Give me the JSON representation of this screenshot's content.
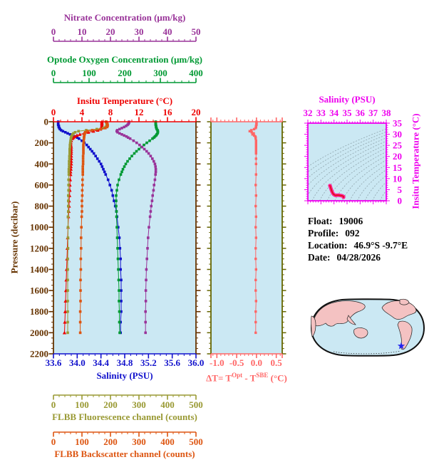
{
  "figure": {
    "description": "Profiling float data plot",
    "info_panel": {
      "float_label": "Float:",
      "float_value": "19006",
      "profile_label": "Profile:",
      "profile_value": "092",
      "location_label": "Location:",
      "location_value": "46.9°S -9.7°E",
      "date_label": "Date:",
      "date_value": "04/28/2026"
    }
  },
  "colors": {
    "plot_bg": "#cbe8f3",
    "ts_outer": "#ff2299",
    "ts_inner": "#dd1111",
    "map_ocean": "#cbe8f3",
    "map_land": "#f4c2c2",
    "map_outline": "#111111",
    "marker_blue": "#2222ee",
    "text": "#000000"
  },
  "axes": {
    "nitrate": {
      "title": "Nitrate Concentration (μm/kg)",
      "color": "#993399",
      "min": 0,
      "max": 50,
      "tick_values": [
        0,
        10,
        20,
        30,
        40,
        50
      ],
      "tick_labels": [
        "0",
        "10",
        "20",
        "30",
        "40",
        "50"
      ],
      "minor_step": 2
    },
    "oxygen": {
      "title": "Optode Oxygen Concentration (μm/kg)",
      "color": "#009933",
      "min": 0,
      "max": 400,
      "tick_values": [
        0,
        100,
        200,
        300,
        400
      ],
      "tick_labels": [
        "0",
        "100",
        "200",
        "300",
        "400"
      ],
      "minor_step": 20
    },
    "temperature": {
      "title": "Insitu Temperature (°C)",
      "color": "#ee0000",
      "min": 0,
      "max": 20,
      "tick_values": [
        0,
        4,
        8,
        12,
        16,
        20
      ],
      "tick_labels": [
        "0",
        "4",
        "8",
        "12",
        "16",
        "20"
      ],
      "minor_step": 1
    },
    "salinity": {
      "title": "Salinity (PSU)",
      "color": "#1111cc",
      "min": 33.6,
      "max": 36.0,
      "tick_values": [
        33.6,
        34.0,
        34.4,
        34.8,
        35.2,
        35.6,
        36.0
      ],
      "tick_labels": [
        "33.6",
        "34.0",
        "34.4",
        "34.8",
        "35.2",
        "35.6",
        "36.0"
      ],
      "minor_step": 0.1
    },
    "fluorescence": {
      "title": "FLBB Fluorescence channel (counts)",
      "color": "#999933",
      "min": 0,
      "max": 500,
      "tick_values": [
        0,
        100,
        200,
        300,
        400,
        500
      ],
      "tick_labels": [
        "0",
        "100",
        "200",
        "300",
        "400",
        "500"
      ],
      "minor_step": 20
    },
    "backscatter": {
      "title": "FLBB Backscatter channel (counts)",
      "color": "#dd5511",
      "min": 0,
      "max": 500,
      "tick_values": [
        0,
        100,
        200,
        300,
        400,
        500
      ],
      "tick_labels": [
        "0",
        "100",
        "200",
        "300",
        "400",
        "500"
      ],
      "minor_step": 20
    },
    "pressure": {
      "title": "Pressure (decibar)",
      "color": "#663300",
      "min": 0,
      "max": 2200,
      "tick_values": [
        0,
        200,
        400,
        600,
        800,
        1000,
        1200,
        1400,
        1600,
        1800,
        2000,
        2200
      ],
      "tick_labels": [
        "0",
        "200",
        "400",
        "600",
        "800",
        "1000",
        "1200",
        "1400",
        "1600",
        "1800",
        "2000",
        "2200"
      ],
      "minor_step": 50
    },
    "delta_t": {
      "title": {
        "p1": "ΔT= T",
        "sup1": "Opt",
        "p2": " - T",
        "sup2": "SBE",
        "p3": " (°C)"
      },
      "color": "#ff6666",
      "frame_color": "#666600",
      "min": -1.0,
      "max": 0.5,
      "tick_values": [
        -1.0,
        -0.5,
        0.0,
        0.5
      ],
      "tick_labels": [
        "-1.0",
        "-0.5",
        "0.0",
        "0.5"
      ],
      "minor_step": 0.1
    },
    "ts": {
      "title": "Salinity (PSU)",
      "right_title": "Insitu Temperature (°C)",
      "color": "#ee00ee",
      "s_min": 32,
      "s_max": 38,
      "s_tick_values": [
        32,
        33,
        34,
        35,
        36,
        37,
        38
      ],
      "s_tick_labels": [
        "32",
        "33",
        "34",
        "35",
        "36",
        "37",
        "38"
      ],
      "s_minor_step": 0.2,
      "t_min": 0,
      "t_max": 35,
      "t_tick_values": [
        0,
        5,
        10,
        15,
        20,
        25,
        30,
        35
      ],
      "t_tick_labels": [
        "0",
        "5",
        "10",
        "15",
        "20",
        "25",
        "30",
        "35"
      ],
      "t_minor_step": 1
    }
  },
  "chart_data": [
    {
      "id": "profile-plot",
      "type": "line",
      "ylabel": "Pressure (decibar)",
      "ylim": [
        0,
        2200
      ],
      "yticks": [
        0,
        200,
        400,
        600,
        800,
        1000,
        1200,
        1400,
        1600,
        1800,
        2000,
        2200
      ],
      "grid": false,
      "pressure_db": [
        0,
        10,
        20,
        30,
        40,
        50,
        60,
        70,
        80,
        90,
        100,
        110,
        120,
        130,
        140,
        150,
        160,
        180,
        200,
        220,
        240,
        260,
        280,
        300,
        325,
        350,
        375,
        400,
        425,
        450,
        475,
        500,
        550,
        600,
        650,
        700,
        750,
        800,
        850,
        900,
        1000,
        1100,
        1200,
        1300,
        1400,
        1500,
        1600,
        1700,
        1800,
        1900,
        2000
      ],
      "series": [
        {
          "name": "Insitu Temperature (°C)",
          "axis_key": "temperature",
          "xlim": [
            0,
            20
          ],
          "values": [
            6.8,
            6.8,
            6.8,
            6.8,
            6.8,
            6.8,
            6.75,
            6.6,
            6.2,
            5.6,
            4.9,
            4.3,
            3.7,
            3.3,
            3.0,
            2.8,
            2.65,
            2.5,
            2.45,
            2.45,
            2.5,
            2.5,
            2.5,
            2.5,
            2.5,
            2.5,
            2.5,
            2.5,
            2.45,
            2.45,
            2.4,
            2.4,
            2.35,
            2.3,
            2.3,
            2.25,
            2.2,
            2.2,
            2.15,
            2.1,
            2.05,
            2.0,
            1.95,
            1.9,
            1.85,
            1.8,
            1.75,
            1.7,
            1.65,
            1.6,
            1.55
          ]
        },
        {
          "name": "Salinity (PSU)",
          "axis_key": "salinity",
          "xlim": [
            33.6,
            36.0
          ],
          "values": [
            33.68,
            33.68,
            33.68,
            33.68,
            33.69,
            33.69,
            33.7,
            33.71,
            33.73,
            33.76,
            33.8,
            33.84,
            33.88,
            33.92,
            33.96,
            34.0,
            34.03,
            34.08,
            34.12,
            34.16,
            34.19,
            34.22,
            34.25,
            34.28,
            34.31,
            34.34,
            34.37,
            34.4,
            34.42,
            34.44,
            34.46,
            34.48,
            34.52,
            34.55,
            34.58,
            34.6,
            34.62,
            34.64,
            34.66,
            34.67,
            34.69,
            34.71,
            34.72,
            34.73,
            34.73,
            34.74,
            34.74,
            34.74,
            34.74,
            34.73,
            34.73
          ]
        },
        {
          "name": "Optode Oxygen Concentration (μm/kg)",
          "axis_key": "oxygen",
          "xlim": [
            0,
            400
          ],
          "values": [
            287,
            287,
            287,
            287,
            288,
            288,
            289,
            290,
            292,
            293,
            293,
            292,
            290,
            288,
            285,
            282,
            278,
            270,
            262,
            254,
            247,
            240,
            233,
            227,
            220,
            214,
            208,
            203,
            199,
            195,
            192,
            189,
            184,
            180,
            178,
            176,
            176,
            176,
            177,
            177,
            178,
            179,
            180,
            181,
            182,
            183,
            184,
            184,
            185,
            185,
            186
          ]
        },
        {
          "name": "Nitrate Concentration (μm/kg)",
          "axis_key": "nitrate",
          "xlim": [
            0,
            50
          ],
          "values": [
            26.5,
            26.5,
            26.3,
            26.0,
            25.5,
            24.8,
            24.0,
            23.2,
            22.4,
            22.2,
            22.5,
            23.2,
            24.0,
            24.8,
            25.6,
            26.2,
            26.9,
            28.1,
            29.2,
            30.2,
            31.1,
            31.9,
            32.7,
            33.4,
            34.1,
            34.7,
            35.2,
            35.6,
            35.8,
            35.9,
            35.9,
            35.8,
            35.6,
            35.3,
            35.1,
            34.8,
            34.6,
            34.3,
            34.1,
            33.9,
            33.5,
            33.2,
            33.0,
            32.8,
            32.6,
            32.5,
            32.4,
            32.4,
            32.3,
            32.3,
            32.3
          ]
        },
        {
          "name": "FLBB Fluorescence channel (counts)",
          "axis_key": "fluorescence",
          "xlim": [
            0,
            500
          ],
          "values": [
            185,
            186,
            187,
            187,
            186,
            183,
            175,
            152,
            115,
            88,
            76,
            70,
            67,
            65,
            63,
            62,
            61,
            60,
            59,
            58,
            58,
            57,
            57,
            57,
            56,
            56,
            55,
            55,
            55,
            54,
            54,
            54,
            53,
            53,
            53,
            52,
            52,
            52,
            52,
            51,
            51,
            51,
            51,
            50,
            50,
            50,
            50,
            50,
            50,
            50,
            50
          ]
        },
        {
          "name": "FLBB Backscatter channel (counts)",
          "axis_key": "backscatter",
          "xlim": [
            0,
            500
          ],
          "values": [
            185,
            187,
            189,
            190,
            190,
            188,
            182,
            165,
            136,
            119,
            112,
            110,
            109,
            108,
            108,
            107,
            107,
            106,
            106,
            105,
            105,
            105,
            105,
            105,
            104,
            104,
            104,
            104,
            103,
            103,
            103,
            103,
            102,
            102,
            101,
            101,
            100,
            100,
            100,
            99,
            98,
            97,
            97,
            96,
            96,
            95,
            95,
            95,
            94,
            94,
            94
          ]
        }
      ]
    },
    {
      "id": "delta-t-plot",
      "type": "line",
      "xlabel": "ΔT= TOpt - TSBE (°C)",
      "xlim": [
        -1.0,
        0.5
      ],
      "xticks": [
        -1.0,
        -0.5,
        0.0,
        0.5
      ],
      "ylim": [
        0,
        2200
      ],
      "pressure_db": [
        0,
        10,
        20,
        30,
        40,
        50,
        60,
        70,
        80,
        90,
        100,
        110,
        120,
        130,
        140,
        150,
        160,
        180,
        200,
        220,
        240,
        260,
        280,
        300,
        350,
        400,
        500,
        600,
        700,
        800,
        900,
        1000,
        1100,
        1200,
        1300,
        1400,
        1500,
        1600,
        1700,
        1800,
        1900,
        2000
      ],
      "values": [
        0.0,
        0.0,
        0.0,
        0.0,
        -0.01,
        -0.01,
        -0.02,
        -0.06,
        -0.13,
        -0.17,
        -0.12,
        -0.07,
        -0.1,
        -0.06,
        -0.03,
        -0.02,
        -0.02,
        -0.01,
        -0.01,
        -0.01,
        -0.01,
        -0.01,
        -0.01,
        -0.01,
        -0.01,
        -0.01,
        -0.01,
        -0.02,
        -0.01,
        -0.02,
        -0.01,
        -0.02,
        -0.01,
        -0.02,
        -0.02,
        -0.01,
        -0.02,
        -0.02,
        -0.01,
        -0.02,
        -0.02,
        -0.02
      ]
    },
    {
      "id": "ts-diagram",
      "type": "line",
      "title": "Salinity (PSU)",
      "ylabel": "Insitu Temperature (°C)",
      "xlim": [
        32,
        38
      ],
      "ylim": [
        0,
        35
      ],
      "xticks": [
        32,
        33,
        34,
        35,
        36,
        37,
        38
      ],
      "yticks": [
        0,
        5,
        10,
        15,
        20,
        25,
        30,
        35
      ],
      "note": "curve = salinity vs temperature pairs from profile series; gray dashed background density isolines"
    },
    {
      "id": "location-map",
      "type": "map",
      "marker": "star",
      "marker_color": "#2222ee"
    }
  ]
}
